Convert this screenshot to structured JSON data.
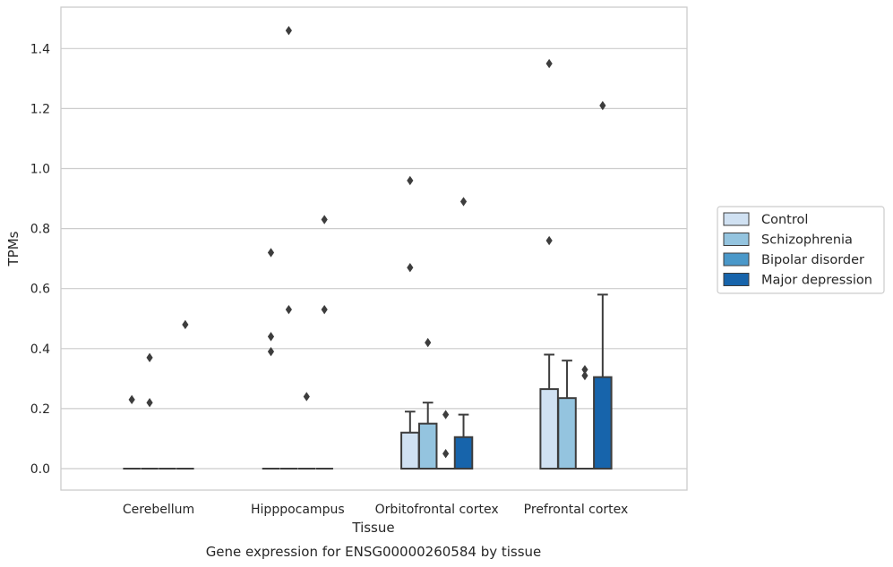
{
  "chart_data": {
    "type": "box",
    "title": "",
    "caption": "Gene expression for ENSG00000260584 by tissue",
    "xlabel": "Tissue",
    "ylabel": "TPMs",
    "ylim": [
      -0.07,
      1.54
    ],
    "yticks": [
      0.0,
      0.2,
      0.4,
      0.6,
      0.8,
      1.0,
      1.2,
      1.4
    ],
    "ytick_labels": [
      "0.0",
      "0.2",
      "0.4",
      "0.6",
      "0.8",
      "1.0",
      "1.2",
      "1.4"
    ],
    "grid": true,
    "legend_position": "right",
    "categories": [
      "Cerebellum",
      "Hipppocampus",
      "Orbitofrontal cortex",
      "Prefrontal cortex"
    ],
    "series": [
      {
        "name": "Control",
        "color": "#d0e1f2",
        "boxes": [
          {
            "q1": 0,
            "median": 0,
            "q3": 0,
            "whisker_low": 0,
            "whisker_high": 0,
            "outliers": [
              0.23
            ]
          },
          {
            "q1": 0,
            "median": 0,
            "q3": 0,
            "whisker_low": 0,
            "whisker_high": 0,
            "outliers": [
              0.72,
              0.44,
              0.39
            ]
          },
          {
            "q1": 0,
            "median": 0,
            "q3": 0.12,
            "whisker_low": 0,
            "whisker_high": 0.19,
            "outliers": [
              0.96,
              0.67
            ]
          },
          {
            "q1": 0,
            "median": 0,
            "q3": 0.265,
            "whisker_low": 0,
            "whisker_high": 0.38,
            "outliers": [
              1.35,
              0.76
            ]
          }
        ]
      },
      {
        "name": "Schizophrenia",
        "color": "#94c4df",
        "boxes": [
          {
            "q1": 0,
            "median": 0,
            "q3": 0,
            "whisker_low": 0,
            "whisker_high": 0,
            "outliers": [
              0.37,
              0.22
            ]
          },
          {
            "q1": 0,
            "median": 0,
            "q3": 0,
            "whisker_low": 0,
            "whisker_high": 0,
            "outliers": [
              1.46,
              0.53
            ]
          },
          {
            "q1": 0,
            "median": 0,
            "q3": 0.15,
            "whisker_low": 0,
            "whisker_high": 0.22,
            "outliers": [
              0.42
            ]
          },
          {
            "q1": 0,
            "median": 0,
            "q3": 0.235,
            "whisker_low": 0,
            "whisker_high": 0.36,
            "outliers": []
          }
        ]
      },
      {
        "name": "Bipolar disorder",
        "color": "#4a98c9",
        "boxes": [
          {
            "q1": 0,
            "median": 0,
            "q3": 0,
            "whisker_low": 0,
            "whisker_high": 0,
            "outliers": []
          },
          {
            "q1": 0,
            "median": 0,
            "q3": 0,
            "whisker_low": 0,
            "whisker_high": 0,
            "outliers": [
              0.24
            ]
          },
          {
            "q1": 0,
            "median": 0,
            "q3": 0,
            "whisker_low": 0,
            "whisker_high": 0,
            "outliers": [
              0.18,
              0.05
            ]
          },
          {
            "q1": 0,
            "median": 0,
            "q3": 0,
            "whisker_low": 0,
            "whisker_high": 0,
            "outliers": [
              0.33,
              0.31
            ]
          }
        ]
      },
      {
        "name": "Major depression",
        "color": "#1764ab",
        "boxes": [
          {
            "q1": 0,
            "median": 0,
            "q3": 0,
            "whisker_low": 0,
            "whisker_high": 0,
            "outliers": [
              0.48
            ]
          },
          {
            "q1": 0,
            "median": 0,
            "q3": 0,
            "whisker_low": 0,
            "whisker_high": 0,
            "outliers": [
              0.83,
              0.53
            ]
          },
          {
            "q1": 0,
            "median": 0,
            "q3": 0.105,
            "whisker_low": 0,
            "whisker_high": 0.18,
            "outliers": [
              0.89
            ]
          },
          {
            "q1": 0,
            "median": 0,
            "q3": 0.305,
            "whisker_low": 0,
            "whisker_high": 0.58,
            "outliers": [
              1.21
            ]
          }
        ]
      }
    ]
  }
}
